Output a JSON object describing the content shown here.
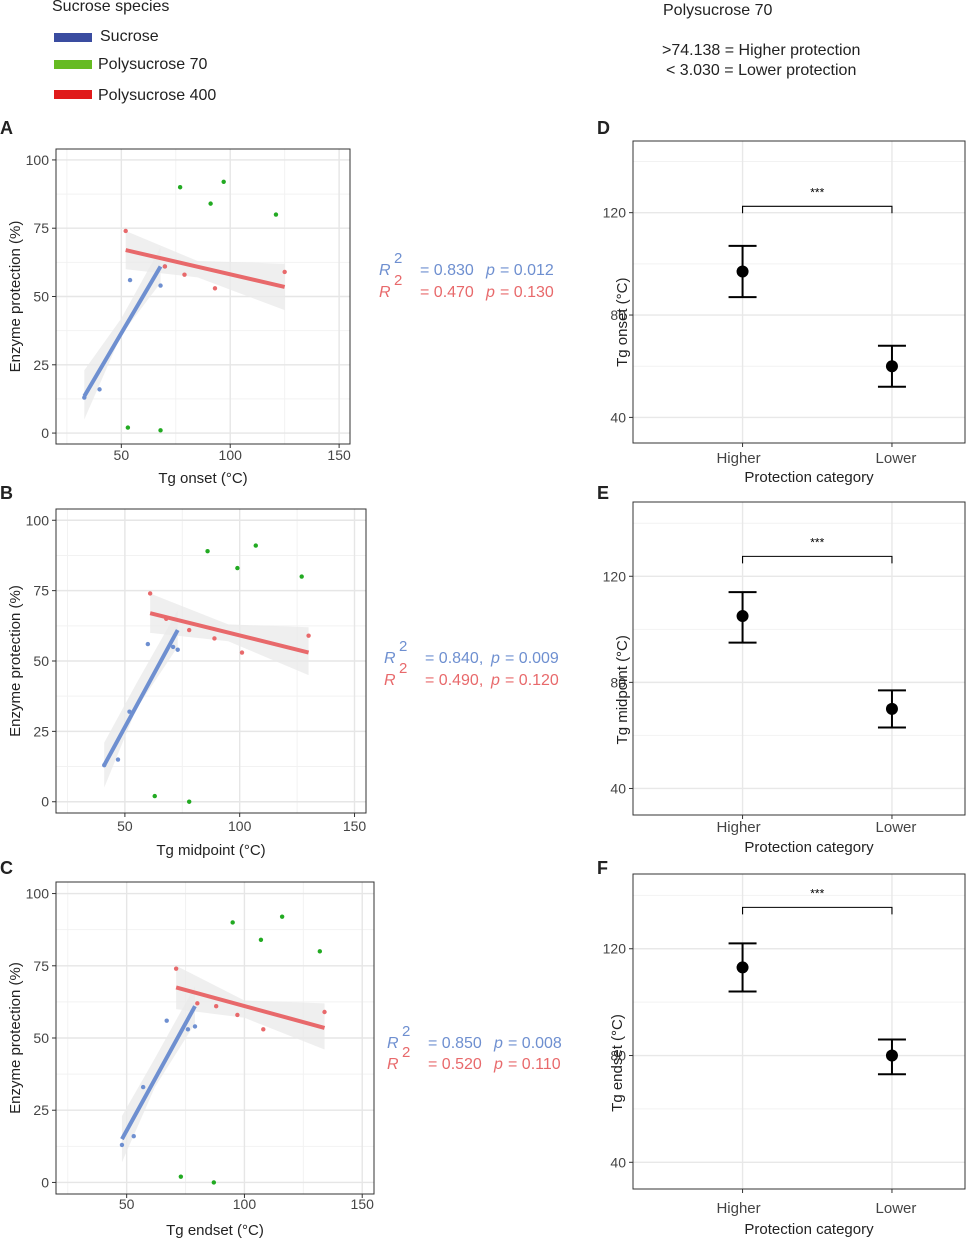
{
  "legend": {
    "title": "Sucrose species",
    "items": [
      {
        "label": "Sucrose",
        "color": "#3a4ca0"
      },
      {
        "label": "Polysucrose 70",
        "color": "#66bb22"
      },
      {
        "label": "Polysucrose 400",
        "color": "#e01b1b"
      }
    ]
  },
  "info": {
    "title": "Polysucrose 70",
    "higher": ">74.138  = Higher protection",
    "lower": "< 3.030  = Lower protection"
  },
  "colors": {
    "blue": "#6e8fd0",
    "red": "#e8696b",
    "green": "#22aa22",
    "band": "#e9e9e9"
  },
  "stats_rows": [
    [
      {
        "r2": "= 0.830",
        "p": "= 0.012"
      },
      {
        "r2": "= 0.470",
        "p": "= 0.130"
      }
    ],
    [
      {
        "r2": "= 0.840,",
        "p": "= 0.009"
      },
      {
        "r2": "= 0.490,",
        "p": "= 0.120"
      }
    ],
    [
      {
        "r2": "= 0.850",
        "p": "= 0.008"
      },
      {
        "r2": "= 0.520",
        "p": "= 0.110"
      }
    ]
  ],
  "stat_symbols": {
    "r": "R",
    "sq": "2",
    "p": "p"
  },
  "chart_data": [
    {
      "id": "A",
      "type": "scatter",
      "xlabel": "Tg onset (°C)",
      "ylabel": "Enzyme protection (%)",
      "xlim": [
        20,
        155
      ],
      "ylim": [
        -4,
        104
      ],
      "xticks": [
        50,
        100,
        150
      ],
      "yticks": [
        0,
        25,
        50,
        75,
        100
      ],
      "series": [
        {
          "name": "Sucrose",
          "color": "blue",
          "points": [
            [
              33,
              13
            ],
            [
              40,
              16
            ],
            [
              54,
              56
            ],
            [
              68,
              54
            ],
            [
              70,
              61
            ]
          ],
          "fit": [
            [
              33,
              13.5
            ],
            [
              68,
              61
            ]
          ],
          "band": [
            [
              33,
              5
            ],
            [
              50,
              36
            ],
            [
              68,
              55
            ],
            [
              68,
              68
            ],
            [
              50,
              42
            ],
            [
              33,
              23
            ]
          ]
        },
        {
          "name": "Polysucrose 70",
          "color": "green",
          "points": [
            [
              53,
              2
            ],
            [
              68,
              1
            ],
            [
              77,
              90
            ],
            [
              91,
              84
            ],
            [
              97,
              92
            ],
            [
              121,
              80
            ]
          ]
        },
        {
          "name": "Polysucrose 400",
          "color": "red",
          "points": [
            [
              52,
              74
            ],
            [
              70,
              61
            ],
            [
              79,
              58
            ],
            [
              93,
              53
            ],
            [
              125,
              59
            ]
          ],
          "fit": [
            [
              52,
              67
            ],
            [
              125,
              53.5
            ]
          ],
          "band": [
            [
              52,
              60
            ],
            [
              85,
              57
            ],
            [
              125,
              45
            ],
            [
              125,
              62
            ],
            [
              85,
              63
            ],
            [
              52,
              74
            ]
          ]
        }
      ]
    },
    {
      "id": "B",
      "type": "scatter",
      "xlabel": "Tg midpoint (°C)",
      "ylabel": "Enzyme protection (%)",
      "xlim": [
        20,
        155
      ],
      "ylim": [
        -4,
        104
      ],
      "xticks": [
        50,
        100,
        150
      ],
      "yticks": [
        0,
        25,
        50,
        75,
        100
      ],
      "series": [
        {
          "name": "Sucrose",
          "color": "blue",
          "points": [
            [
              41,
              13
            ],
            [
              47,
              15
            ],
            [
              52,
              32
            ],
            [
              60,
              56
            ],
            [
              71,
              55
            ],
            [
              73,
              54
            ]
          ],
          "fit": [
            [
              41,
              13
            ],
            [
              73,
              61
            ]
          ],
          "band": [
            [
              41,
              5
            ],
            [
              55,
              33
            ],
            [
              73,
              55
            ],
            [
              73,
              68
            ],
            [
              55,
              42
            ],
            [
              41,
              21
            ]
          ]
        },
        {
          "name": "Polysucrose 70",
          "color": "green",
          "points": [
            [
              63,
              2
            ],
            [
              78,
              0
            ],
            [
              86,
              89
            ],
            [
              99,
              83
            ],
            [
              107,
              91
            ],
            [
              127,
              80
            ]
          ]
        },
        {
          "name": "Polysucrose 400",
          "color": "red",
          "points": [
            [
              61,
              74
            ],
            [
              68,
              65
            ],
            [
              78,
              61
            ],
            [
              89,
              58
            ],
            [
              101,
              53
            ],
            [
              130,
              59
            ]
          ],
          "fit": [
            [
              61,
              67
            ],
            [
              130,
              53
            ]
          ],
          "band": [
            [
              61,
              60
            ],
            [
              95,
              57
            ],
            [
              130,
              45
            ],
            [
              130,
              62
            ],
            [
              95,
              63
            ],
            [
              61,
              74
            ]
          ]
        }
      ]
    },
    {
      "id": "C",
      "type": "scatter",
      "xlabel": "Tg endset (°C)",
      "ylabel": "Enzyme protection (%)",
      "xlim": [
        20,
        155
      ],
      "ylim": [
        -4,
        104
      ],
      "xticks": [
        50,
        100,
        150
      ],
      "yticks": [
        0,
        25,
        50,
        75,
        100
      ],
      "series": [
        {
          "name": "Sucrose",
          "color": "blue",
          "points": [
            [
              48,
              13
            ],
            [
              53,
              16
            ],
            [
              57,
              33
            ],
            [
              67,
              56
            ],
            [
              76,
              53
            ],
            [
              79,
              54
            ]
          ],
          "fit": [
            [
              48,
              15
            ],
            [
              79,
              61
            ]
          ],
          "band": [
            [
              48,
              7
            ],
            [
              62,
              33
            ],
            [
              79,
              55
            ],
            [
              79,
              68
            ],
            [
              62,
              43
            ],
            [
              48,
              23
            ]
          ]
        },
        {
          "name": "Polysucrose 70",
          "color": "green",
          "points": [
            [
              73,
              2
            ],
            [
              87,
              0
            ],
            [
              95,
              90
            ],
            [
              107,
              84
            ],
            [
              116,
              92
            ],
            [
              132,
              80
            ]
          ]
        },
        {
          "name": "Polysucrose 400",
          "color": "red",
          "points": [
            [
              71,
              74
            ],
            [
              80,
              62
            ],
            [
              88,
              61
            ],
            [
              97,
              58
            ],
            [
              108,
              53
            ],
            [
              134,
              59
            ]
          ],
          "fit": [
            [
              71,
              67.5
            ],
            [
              134,
              53.5
            ]
          ],
          "band": [
            [
              71,
              60
            ],
            [
              100,
              57
            ],
            [
              134,
              46
            ],
            [
              134,
              62
            ],
            [
              100,
              63
            ],
            [
              71,
              75
            ]
          ]
        }
      ]
    },
    {
      "id": "D",
      "type": "errorbar",
      "xlabel": "Protection category",
      "ylabel": "Tg onset (°C)",
      "categories": [
        "Higher",
        "Lower"
      ],
      "values": [
        97,
        60
      ],
      "err_low": [
        87,
        52
      ],
      "err_high": [
        107,
        68
      ],
      "ylim": [
        30,
        148
      ],
      "yticks": [
        40,
        80,
        120
      ],
      "significance": "***",
      "bracket_y": 122.5
    },
    {
      "id": "E",
      "type": "errorbar",
      "xlabel": "Protection category",
      "ylabel": "Tg midpoint (°C)",
      "categories": [
        "Higher",
        "Lower"
      ],
      "values": [
        105,
        70
      ],
      "err_low": [
        95,
        63
      ],
      "err_high": [
        114,
        77
      ],
      "ylim": [
        30,
        148
      ],
      "yticks": [
        40,
        80,
        120
      ],
      "significance": "***",
      "bracket_y": 127.5
    },
    {
      "id": "F",
      "type": "errorbar",
      "xlabel": "Protection category",
      "ylabel": "Tg endset (°C)",
      "categories": [
        "Higher",
        "Lower"
      ],
      "values": [
        113,
        80
      ],
      "err_low": [
        104,
        73
      ],
      "err_high": [
        122,
        86
      ],
      "ylim": [
        30,
        148
      ],
      "yticks": [
        40,
        80,
        120
      ],
      "significance": "***",
      "bracket_y": 135.5
    }
  ]
}
